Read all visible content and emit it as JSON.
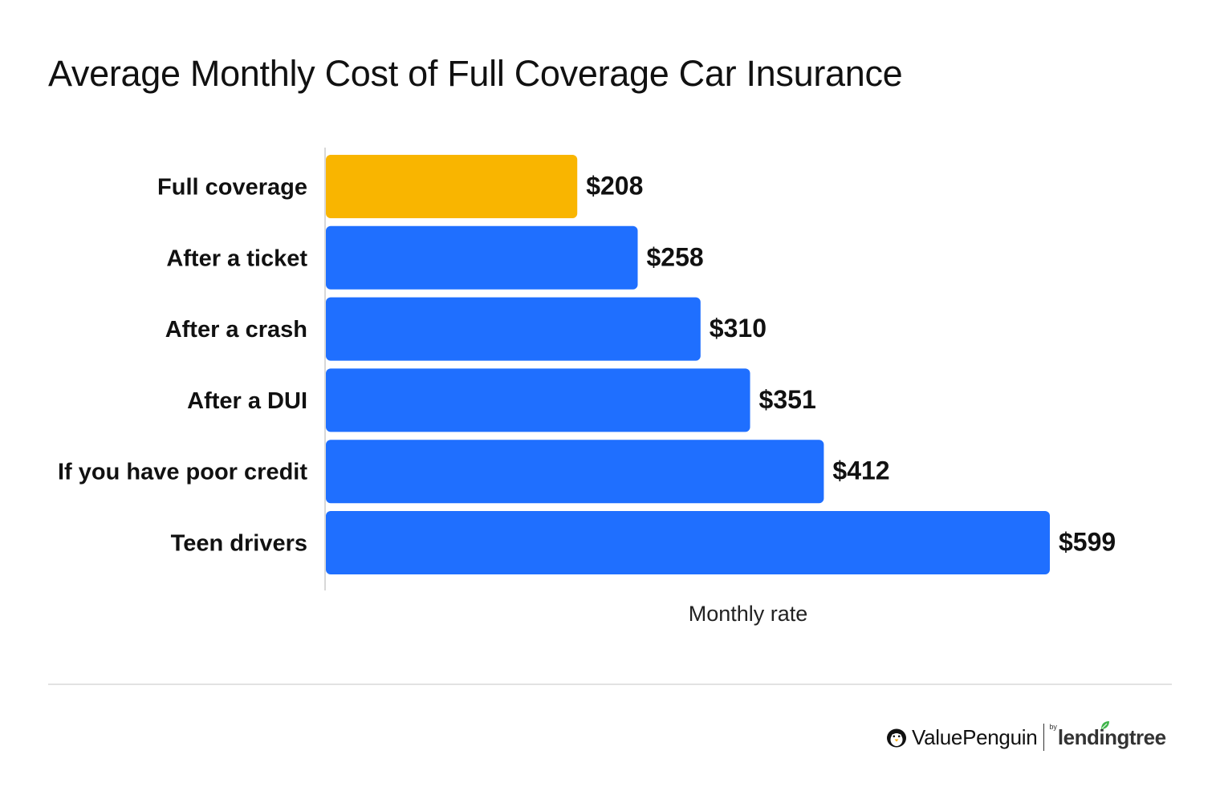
{
  "title": "Average Monthly Cost of Full Coverage Car Insurance",
  "colors": {
    "highlight": "#F9B500",
    "bar": "#1F6FFF",
    "axis": "#cccccc"
  },
  "chart_data": {
    "type": "bar",
    "orientation": "horizontal",
    "title": "Average Monthly Cost of Full Coverage Car Insurance",
    "xlabel": "Monthly rate",
    "ylabel": "",
    "categories": [
      "Full coverage",
      "After a ticket",
      "After a crash",
      "After a DUI",
      "If you have poor credit",
      "Teen drivers"
    ],
    "values": [
      208,
      258,
      310,
      351,
      412,
      599
    ],
    "value_labels": [
      "$208",
      "$258",
      "$310",
      "$351",
      "$412",
      "$599"
    ],
    "highlighted_category": "Full coverage",
    "xlim": [
      0,
      599
    ],
    "grid": false,
    "legend": "none"
  },
  "footer": {
    "brand_primary": "ValuePenguin",
    "brand_by": "by",
    "brand_secondary": "lendingtree",
    "penguin_icon": "penguin-icon",
    "leaf_icon": "leaf-icon"
  }
}
